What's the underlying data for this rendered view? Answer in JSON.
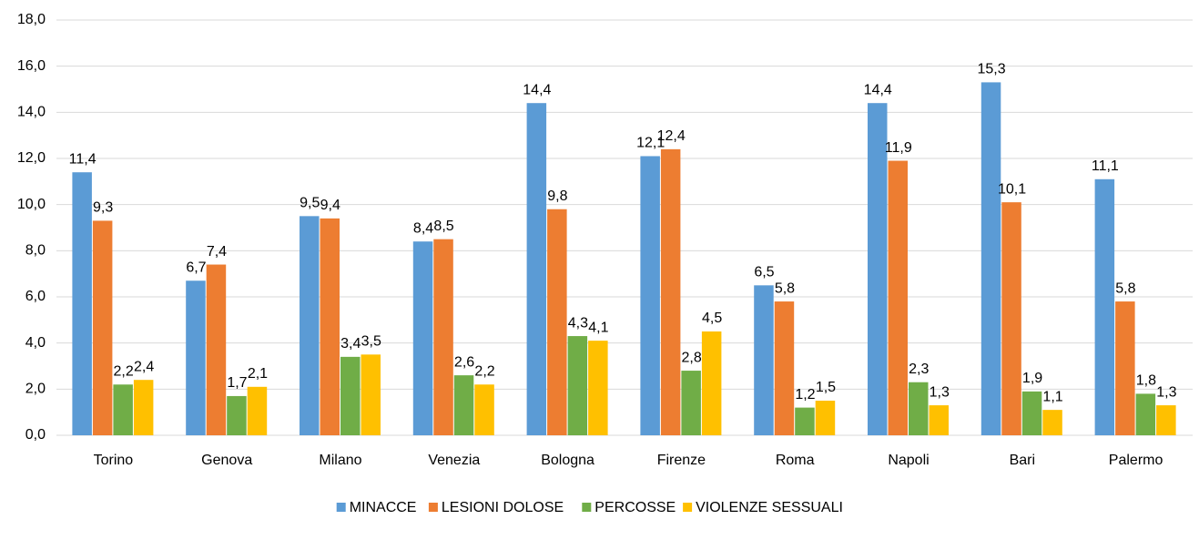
{
  "chart_data": {
    "type": "bar",
    "categories": [
      "Torino",
      "Genova",
      "Milano",
      "Venezia",
      "Bologna",
      "Firenze",
      "Roma",
      "Napoli",
      "Bari",
      "Palermo"
    ],
    "series": [
      {
        "name": "MINACCE",
        "color": "#5b9bd5",
        "values": [
          11.4,
          6.7,
          9.5,
          8.4,
          14.4,
          12.1,
          6.5,
          14.4,
          15.3,
          11.1
        ],
        "value_labels": [
          "11,4",
          "6,7",
          "9,5",
          "8,4",
          "14,4",
          "12,1",
          "6,5",
          "14,4",
          "15,3",
          "11,1"
        ]
      },
      {
        "name": "LESIONI DOLOSE",
        "color": "#ed7d31",
        "values": [
          9.3,
          7.4,
          9.4,
          8.5,
          9.8,
          12.4,
          5.8,
          11.9,
          10.1,
          5.8
        ],
        "value_labels": [
          "9,3",
          "7,4",
          "9,4",
          "8,5",
          "9,8",
          "12,4",
          "5,8",
          "11,9",
          "10,1",
          "5,8"
        ]
      },
      {
        "name": "PERCOSSE",
        "color": "#70ad47",
        "values": [
          2.2,
          1.7,
          3.4,
          2.6,
          4.3,
          2.8,
          1.2,
          2.3,
          1.9,
          1.8
        ],
        "value_labels": [
          "2,2",
          "1,7",
          "3,4",
          "2,6",
          "4,3",
          "2,8",
          "1,2",
          "2,3",
          "1,9",
          "1,8"
        ]
      },
      {
        "name": "VIOLENZE SESSUALI",
        "color": "#ffc000",
        "values": [
          2.4,
          2.1,
          3.5,
          2.2,
          4.1,
          4.5,
          1.5,
          1.3,
          1.1,
          1.3
        ],
        "value_labels": [
          "2,4",
          "2,1",
          "3,5",
          "2,2",
          "4,1",
          "4,5",
          "1,5",
          "1,3",
          "1,1",
          "1,3"
        ]
      }
    ],
    "ylim": [
      0,
      18
    ],
    "yticks": [
      {
        "value": 0,
        "label": "0,0"
      },
      {
        "value": 2,
        "label": "2,0"
      },
      {
        "value": 4,
        "label": "4,0"
      },
      {
        "value": 6,
        "label": "6,0"
      },
      {
        "value": 8,
        "label": "8,0"
      },
      {
        "value": 10,
        "label": "10,0"
      },
      {
        "value": 12,
        "label": "12,0"
      },
      {
        "value": 14,
        "label": "14,0"
      },
      {
        "value": 16,
        "label": "16,0"
      },
      {
        "value": 18,
        "label": "18,0"
      }
    ],
    "grid": true,
    "legend": "bottom"
  }
}
